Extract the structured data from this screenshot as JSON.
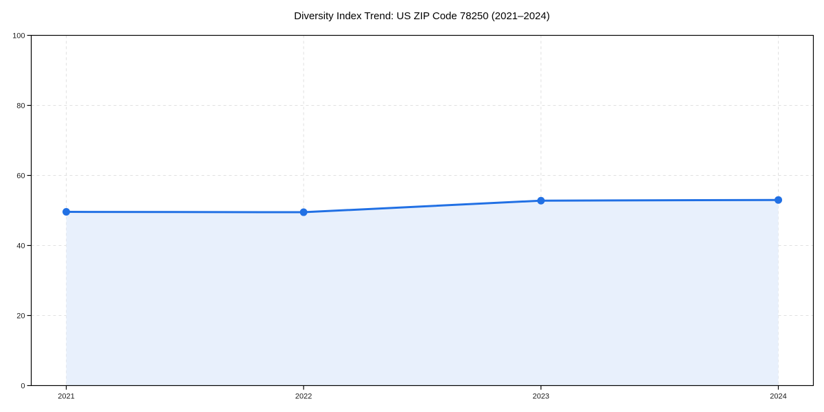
{
  "chart_data": {
    "type": "area",
    "title": "Diversity Index Trend: US ZIP Code 78250 (2021–2024)",
    "categories": [
      "2021",
      "2022",
      "2023",
      "2024"
    ],
    "values": [
      49.6,
      49.5,
      52.8,
      53.0
    ],
    "ylim": [
      0,
      100
    ],
    "yticks": [
      0,
      20,
      40,
      60,
      80,
      100
    ],
    "grid": true,
    "legend": false,
    "marker": "circle",
    "colors": {
      "line": "#2170e4",
      "fill": "#e8f0fc",
      "grid": "#e0e0e0",
      "spine": "#000000",
      "tick_label": "#1a1a1a",
      "title": "#000000"
    }
  }
}
